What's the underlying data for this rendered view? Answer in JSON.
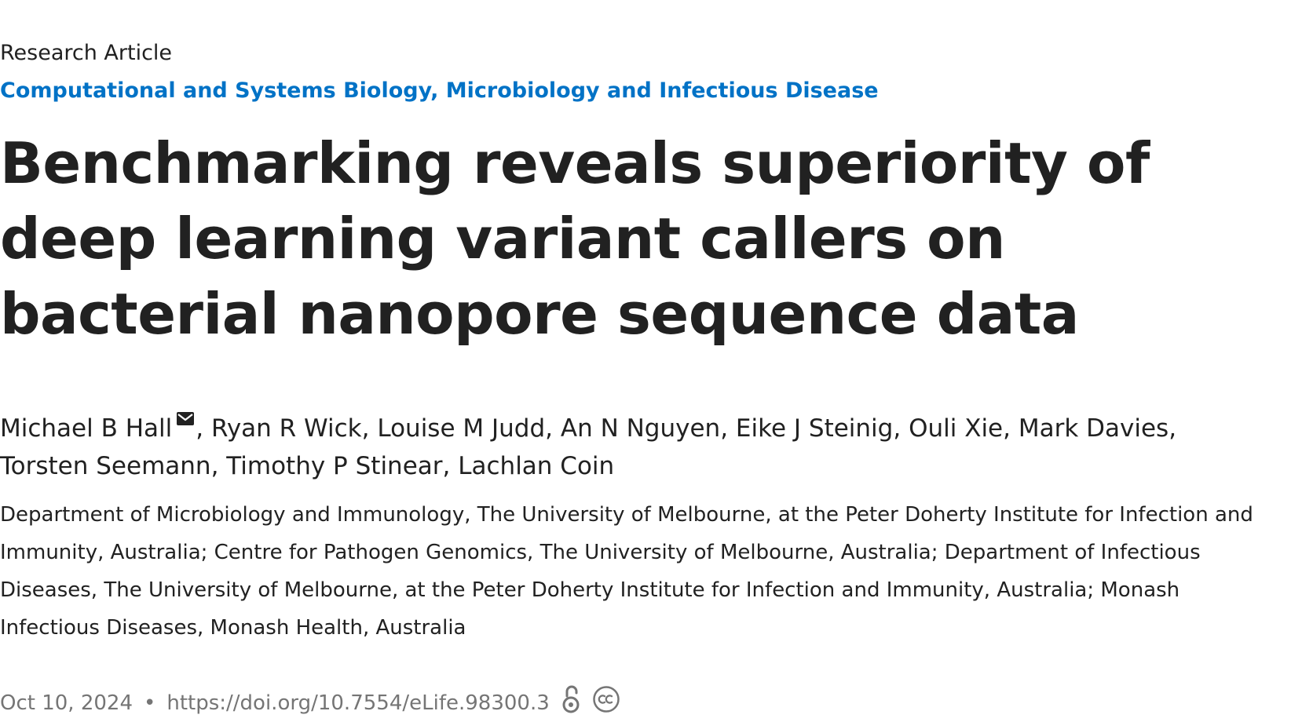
{
  "article_type": "Research Article",
  "subjects": [
    "Computational and Systems Biology",
    "Microbiology and Infectious Disease"
  ],
  "subject_separator": ", ",
  "title": "Benchmarking reveals superiority of deep learning variant callers on bacterial nanopore sequence data",
  "authors": [
    "Michael B Hall",
    "Ryan R Wick",
    "Louise M Judd",
    "An N Nguyen",
    "Eike J Steinig",
    "Ouli Xie",
    "Mark Davies",
    "Torsten Seemann",
    "Timothy P Stinear",
    "Lachlan Coin"
  ],
  "author_separator": ", ",
  "affiliations_text": "Department of Microbiology and Immunology, The University of Melbourne, at the Peter Doherty Institute for Infection and Immunity, Australia; Centre for Pathogen Genomics, The University of Melbourne, Australia; Department of Infectious Diseases, The University of Melbourne, at the Peter Doherty Institute for Infection and Immunity, Australia; Monash Infectious Diseases, Monash Health, Australia",
  "meta": {
    "date": "Oct 10, 2024",
    "bullet": "•",
    "doi": "https://doi.org/10.7554/eLife.98300.3"
  },
  "icons": {
    "corresponding_author": "mail-icon",
    "open_access": "open-access-icon",
    "license": "creative-commons-icon"
  },
  "colors": {
    "text": "#212121",
    "subject_link": "#0072c6",
    "meta_text": "#757575"
  }
}
